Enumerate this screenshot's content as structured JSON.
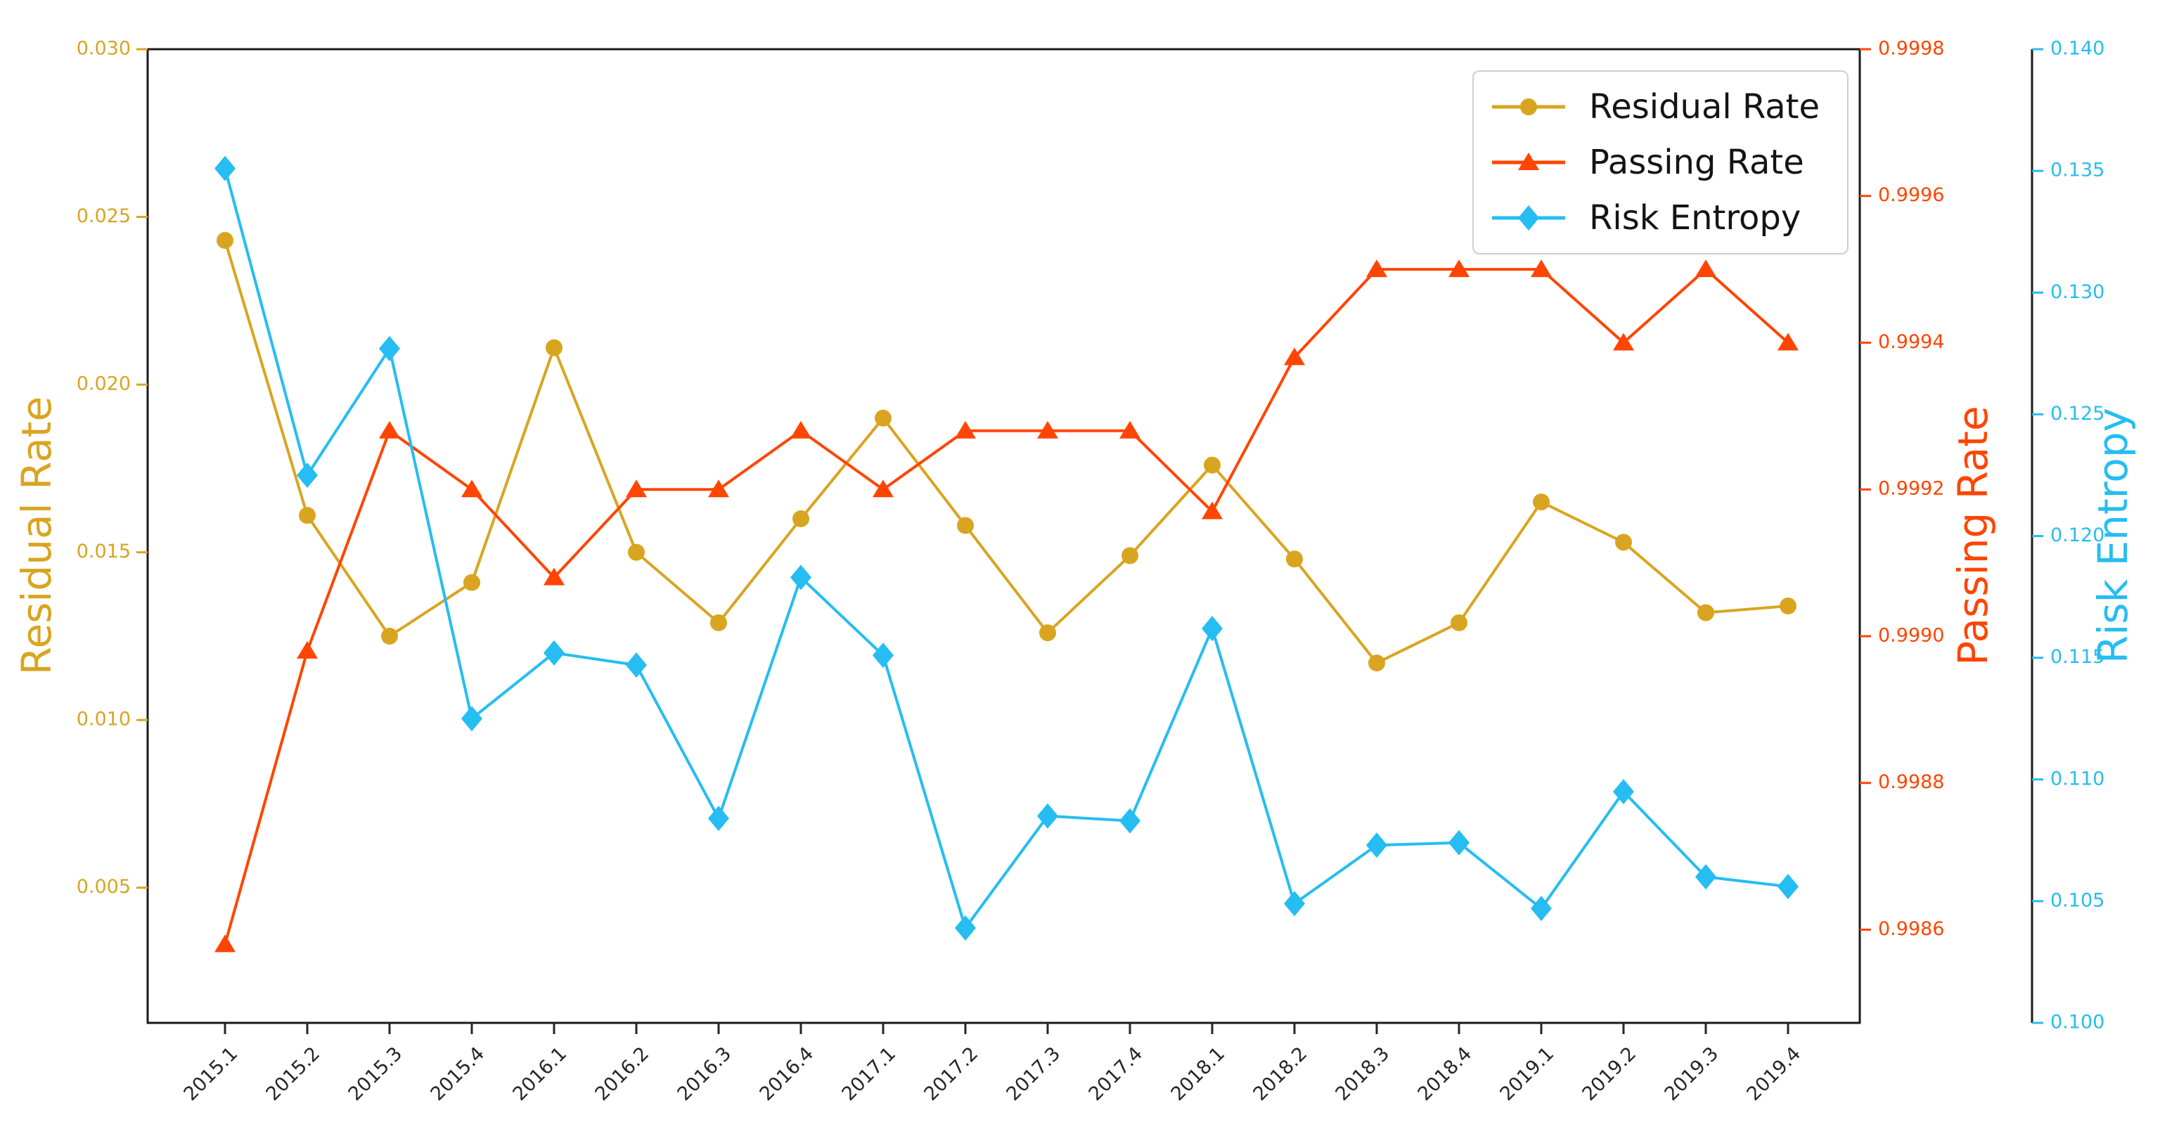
{
  "chart_data": {
    "type": "line",
    "title": "",
    "grid": false,
    "categories": [
      "2015.1",
      "2015.2",
      "2015.3",
      "2015.4",
      "2016.1",
      "2016.2",
      "2016.3",
      "2016.4",
      "2017.1",
      "2017.2",
      "2017.3",
      "2017.4",
      "2018.1",
      "2018.2",
      "2018.3",
      "2018.4",
      "2019.1",
      "2019.2",
      "2019.3",
      "2019.4"
    ],
    "series": [
      {
        "name": "Residual Rate",
        "axis": "residual",
        "color": "#d9a520",
        "marker": "circle",
        "values": [
          0.0243,
          0.0161,
          0.0125,
          0.0141,
          0.0211,
          0.015,
          0.0129,
          0.016,
          0.019,
          0.0158,
          0.0126,
          0.0149,
          0.0176,
          0.0148,
          0.0117,
          0.0129,
          0.0165,
          0.0153,
          0.0132,
          0.0134
        ]
      },
      {
        "name": "Passing Rate",
        "axis": "passing",
        "color": "#ff4500",
        "marker": "triangle",
        "values": [
          0.99858,
          0.99898,
          0.99928,
          0.9992,
          0.99908,
          0.9992,
          0.9992,
          0.99928,
          0.9992,
          0.99928,
          0.99928,
          0.99928,
          0.99917,
          0.99938,
          0.9995,
          0.9995,
          0.9995,
          0.9994,
          0.9995,
          0.9994
        ]
      },
      {
        "name": "Risk Entropy",
        "axis": "risk",
        "color": "#25bdf2",
        "marker": "diamond",
        "values": [
          0.1351,
          0.1225,
          0.1277,
          0.1125,
          0.1152,
          0.1147,
          0.1084,
          0.1183,
          0.1151,
          0.1039,
          0.1085,
          0.1083,
          0.1162,
          0.1049,
          0.1073,
          0.1074,
          0.1047,
          0.1095,
          0.106,
          0.1056
        ]
      }
    ],
    "axes": {
      "residual": {
        "label": "Residual Rate",
        "side": "left",
        "color": "#d9a520",
        "range": [
          0.00097,
          0.03
        ],
        "ticks": [
          0.005,
          0.01,
          0.015,
          0.02,
          0.025,
          0.03
        ],
        "decimals": 3
      },
      "passing": {
        "label": "Passing Rate",
        "side": "right",
        "color": "#ff4500",
        "range": [
          0.998473,
          0.9998
        ],
        "ticks": [
          0.9986,
          0.9988,
          0.999,
          0.9992,
          0.9994,
          0.9996,
          0.9998
        ],
        "decimals": 4
      },
      "risk": {
        "label": "Risk Entropy",
        "side": "right-outer",
        "color": "#25bdf2",
        "range": [
          0.1,
          0.14
        ],
        "ticks": [
          0.1,
          0.105,
          0.11,
          0.115,
          0.12,
          0.125,
          0.13,
          0.135,
          0.14
        ],
        "decimals": 3
      }
    },
    "x_axis": {
      "tick_rotation": 45,
      "color": "#262626"
    },
    "legend": {
      "position": "top-right",
      "entries": [
        "Residual Rate",
        "Passing Rate",
        "Risk Entropy"
      ]
    }
  }
}
